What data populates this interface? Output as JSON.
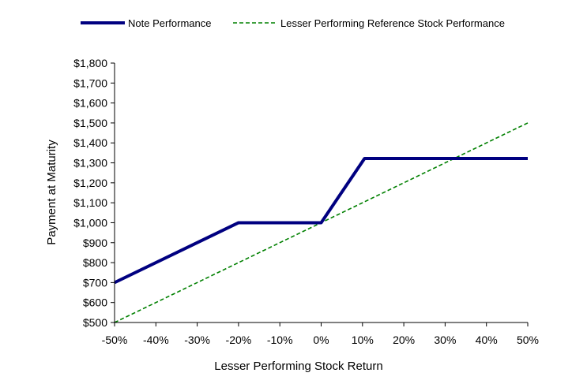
{
  "chart_data": {
    "type": "line",
    "title": "",
    "xlabel": "Lesser Performing Stock Return",
    "ylabel": "Payment at Maturity",
    "x_ticks": [
      "-50%",
      "-40%",
      "-30%",
      "-20%",
      "-10%",
      "0%",
      "10%",
      "20%",
      "30%",
      "40%",
      "50%"
    ],
    "y_ticks": [
      "$500",
      "$600",
      "$700",
      "$800",
      "$900",
      "$1,000",
      "$1,100",
      "$1,200",
      "$1,300",
      "$1,400",
      "$1,500",
      "$1,600",
      "$1,700",
      "$1,800"
    ],
    "xlim": [
      -50,
      50
    ],
    "ylim": [
      500,
      1800
    ],
    "grid": false,
    "legend_position": "top",
    "series": [
      {
        "name": "Note Performance",
        "color": "#000080",
        "style": "solid",
        "x": [
          -50,
          -20,
          0,
          10.5,
          50
        ],
        "y": [
          700,
          1000,
          1000,
          1322,
          1322
        ]
      },
      {
        "name": "Lesser Performing Reference Stock Performance",
        "color": "#008000",
        "style": "dashed",
        "x": [
          -50,
          50
        ],
        "y": [
          500,
          1500
        ]
      }
    ]
  }
}
